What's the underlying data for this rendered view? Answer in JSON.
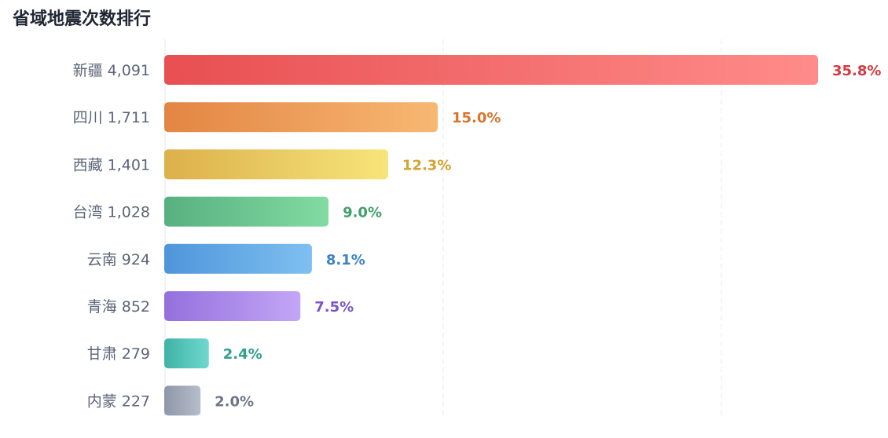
{
  "chart_title": "省域地震次数排行",
  "chart_data": {
    "type": "bar",
    "orientation": "horizontal",
    "title": "省域地震次数排行",
    "xlim": [
      0,
      4091
    ],
    "grid": true,
    "categories": [
      "新疆",
      "四川",
      "西藏",
      "台湾",
      "云南",
      "青海",
      "甘肃",
      "内蒙"
    ],
    "values": [
      4091,
      1711,
      1401,
      1028,
      924,
      852,
      279,
      227
    ],
    "category_labels": [
      "新疆 4,091",
      "四川 1,711",
      "西藏 1,401",
      "台湾 1,028",
      "云南 924",
      "青海 852",
      "甘肃 279",
      "内蒙 227"
    ],
    "percent_labels": [
      "35.8%",
      "15.0%",
      "12.3%",
      "9.0%",
      "8.1%",
      "7.5%",
      "2.4%",
      "2.0%"
    ],
    "colors": [
      {
        "start": "#e84f52",
        "end": "#ff8c8a",
        "label": "#d63a3e"
      },
      {
        "start": "#e38543",
        "end": "#f7b873",
        "label": "#d8762f"
      },
      {
        "start": "#dcb04b",
        "end": "#f7e57a",
        "label": "#d4a22f"
      },
      {
        "start": "#57b07f",
        "end": "#82dba2",
        "label": "#3f9f69"
      },
      {
        "start": "#4f95da",
        "end": "#7ec0f0",
        "label": "#3b82c8"
      },
      {
        "start": "#9470dd",
        "end": "#c3a6f6",
        "label": "#7c55c9"
      },
      {
        "start": "#3fb3a5",
        "end": "#6fd8cf",
        "label": "#2f9f8f"
      },
      {
        "start": "#8e97a8",
        "end": "#b6bdcb",
        "label": "#6e7788"
      }
    ]
  }
}
